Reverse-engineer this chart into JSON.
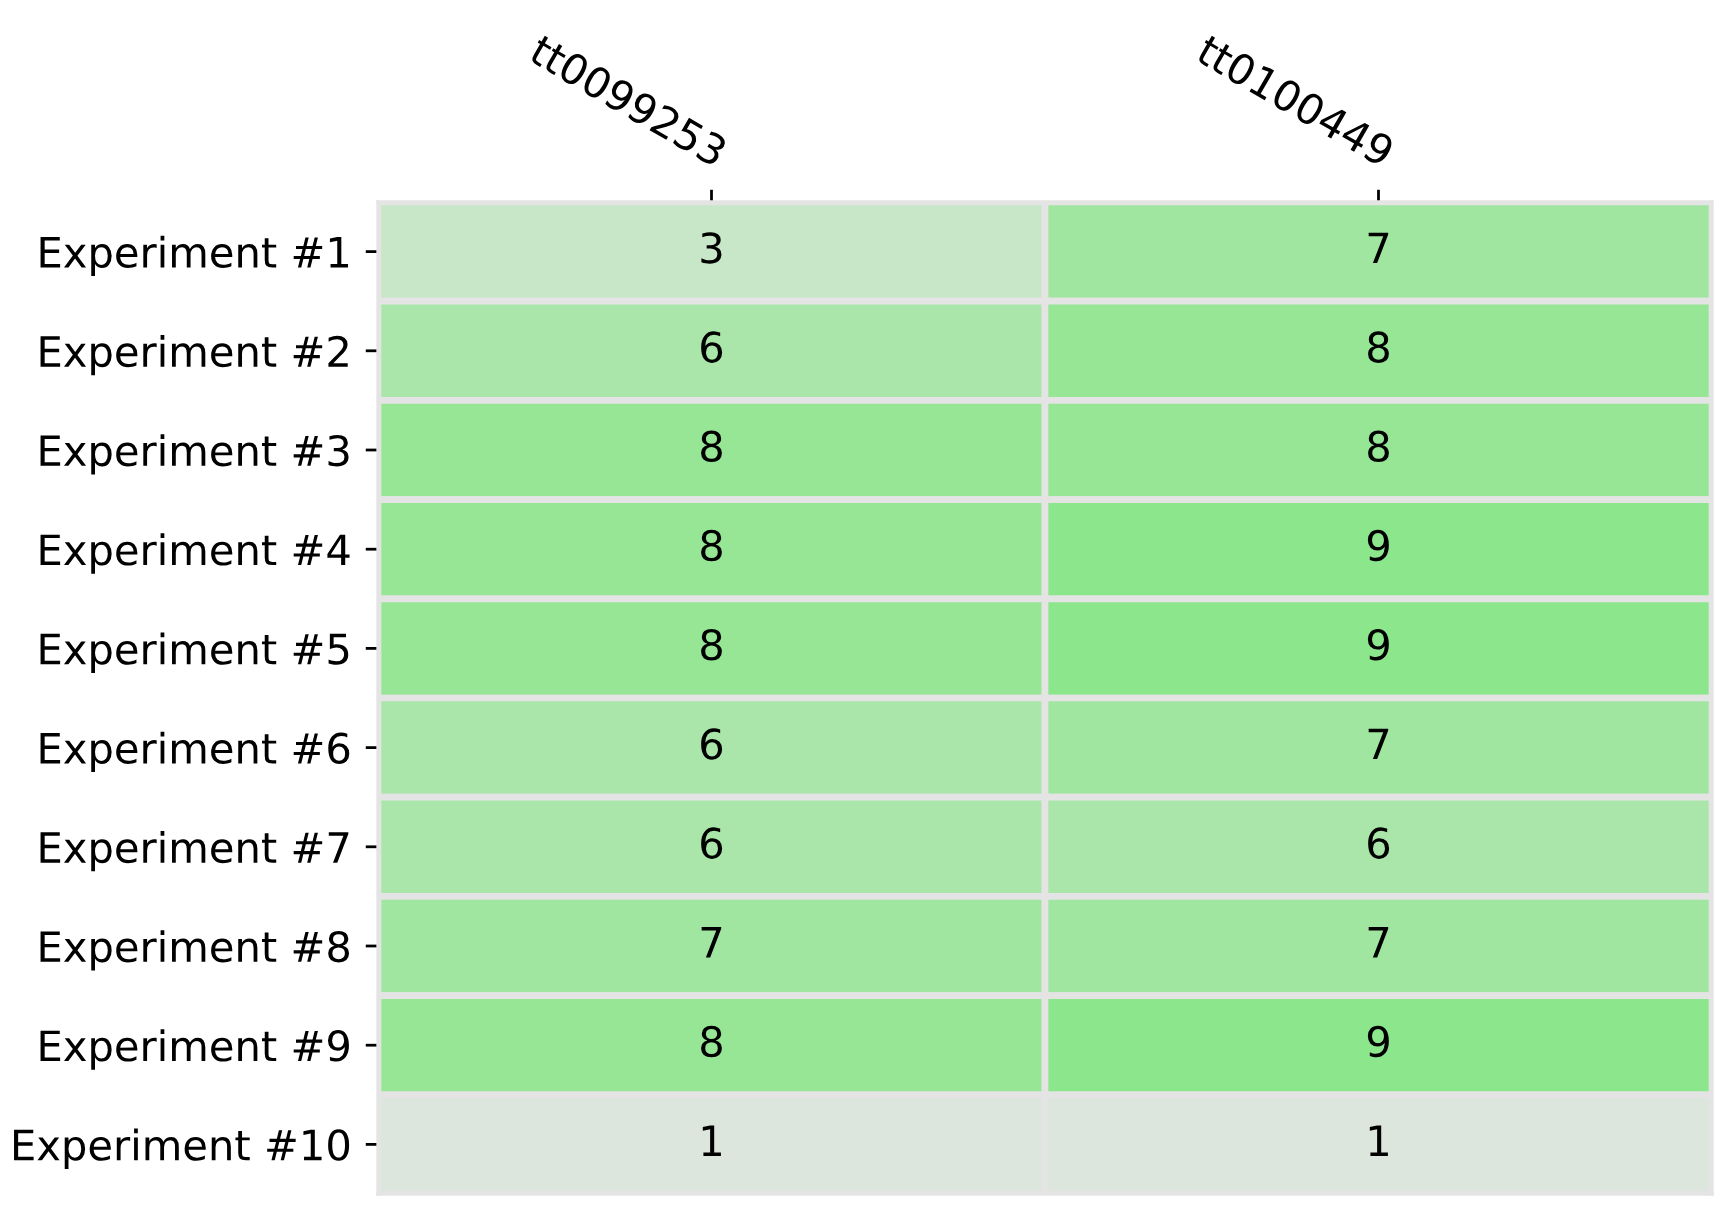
{
  "chart_data": {
    "type": "heatmap",
    "categories": [
      "tt0099253",
      "tt0100449"
    ],
    "y_categories": [
      "Experiment #1",
      "Experiment #2",
      "Experiment #3",
      "Experiment #4",
      "Experiment #5",
      "Experiment #6",
      "Experiment #7",
      "Experiment #8",
      "Experiment #9",
      "Experiment #10"
    ],
    "cells": [
      [
        3,
        7
      ],
      [
        6,
        8
      ],
      [
        8,
        8
      ],
      [
        8,
        9
      ],
      [
        8,
        9
      ],
      [
        6,
        7
      ],
      [
        6,
        6
      ],
      [
        7,
        7
      ],
      [
        8,
        9
      ],
      [
        1,
        1
      ]
    ],
    "data_labels": true,
    "colors": [
      "#dce6dc",
      "#8ce68c"
    ]
  }
}
